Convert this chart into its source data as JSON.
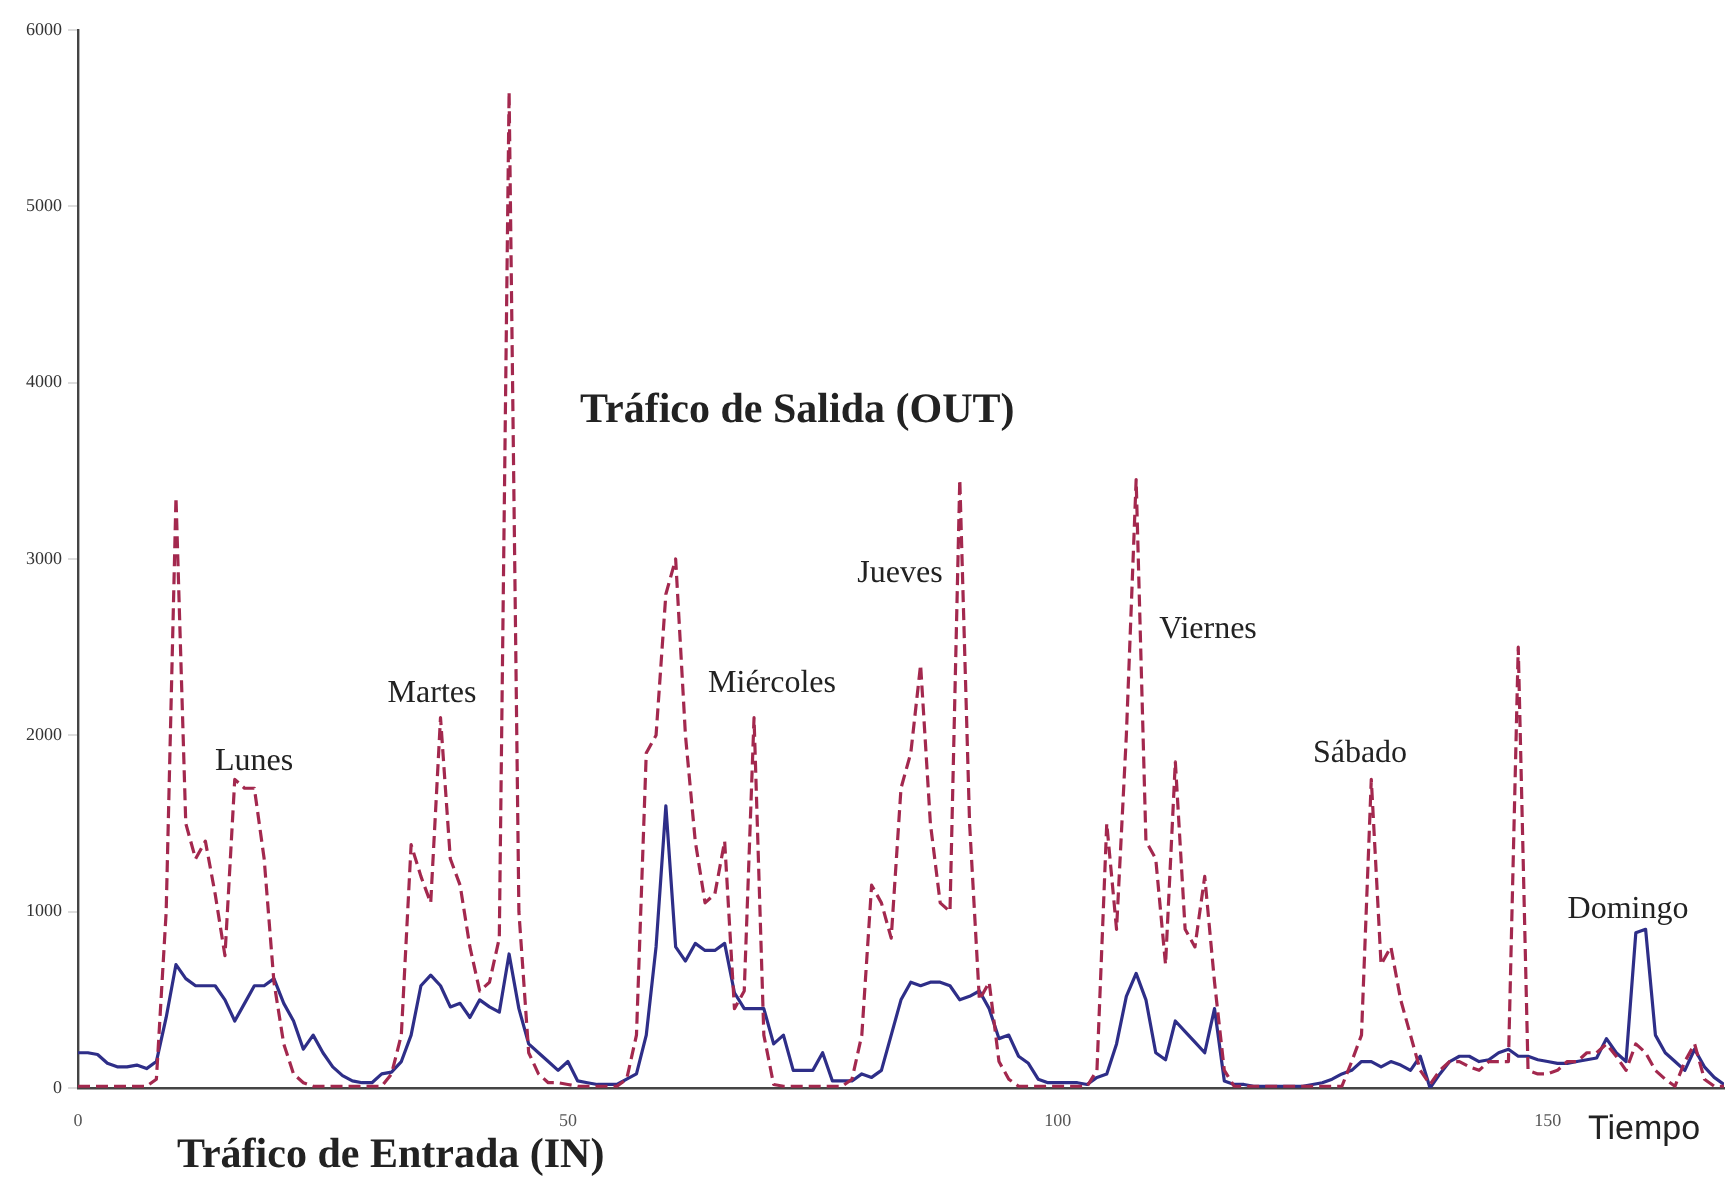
{
  "chart_data": {
    "type": "line",
    "xlabel": "Tiempo",
    "xlim": [
      0,
      168
    ],
    "xticks": [
      0,
      50,
      100,
      150
    ],
    "ylim": [
      0,
      6000
    ],
    "yticks": [
      0,
      1000,
      2000,
      3000,
      4000,
      5000,
      6000
    ],
    "grid": false,
    "legend": false,
    "marker": "none",
    "x": [
      0,
      1,
      2,
      3,
      4,
      5,
      6,
      7,
      8,
      9,
      10,
      11,
      12,
      13,
      14,
      15,
      16,
      17,
      18,
      19,
      20,
      21,
      22,
      23,
      24,
      25,
      26,
      27,
      28,
      29,
      30,
      31,
      32,
      33,
      34,
      35,
      36,
      37,
      38,
      39,
      40,
      41,
      42,
      43,
      44,
      45,
      46,
      47,
      48,
      49,
      50,
      51,
      52,
      53,
      54,
      55,
      56,
      57,
      58,
      59,
      60,
      61,
      62,
      63,
      64,
      65,
      66,
      67,
      68,
      69,
      70,
      71,
      72,
      73,
      74,
      75,
      76,
      77,
      78,
      79,
      80,
      81,
      82,
      83,
      84,
      85,
      86,
      87,
      88,
      89,
      90,
      91,
      92,
      93,
      94,
      95,
      96,
      97,
      98,
      99,
      100,
      101,
      102,
      103,
      104,
      105,
      106,
      107,
      108,
      109,
      110,
      111,
      112,
      113,
      114,
      115,
      116,
      117,
      118,
      119,
      120,
      121,
      122,
      123,
      124,
      125,
      126,
      127,
      128,
      129,
      130,
      131,
      132,
      133,
      134,
      135,
      136,
      137,
      138,
      139,
      140,
      141,
      142,
      143,
      144,
      145,
      146,
      147,
      148,
      149,
      150,
      151,
      152,
      153,
      154,
      155,
      156,
      157,
      158,
      159,
      160,
      161,
      162,
      163,
      164,
      165,
      166,
      167,
      168
    ],
    "series": [
      {
        "name": "Tráfico de Salida (OUT)",
        "color": "#a3284e",
        "line_style": "dashed",
        "values": [
          10,
          10,
          10,
          10,
          10,
          10,
          10,
          10,
          50,
          1000,
          3350,
          1500,
          1300,
          1400,
          1100,
          750,
          1750,
          1700,
          1700,
          1300,
          600,
          250,
          80,
          30,
          10,
          10,
          10,
          10,
          10,
          10,
          10,
          10,
          80,
          300,
          1380,
          1200,
          1050,
          2100,
          1300,
          1150,
          800,
          550,
          600,
          850,
          5650,
          1000,
          200,
          80,
          30,
          30,
          20,
          10,
          10,
          10,
          10,
          10,
          50,
          300,
          1900,
          2000,
          2800,
          3000,
          2000,
          1400,
          1050,
          1100,
          1400,
          450,
          550,
          2100,
          300,
          20,
          10,
          10,
          10,
          10,
          10,
          10,
          10,
          50,
          300,
          1150,
          1050,
          850,
          1700,
          1900,
          2400,
          1500,
          1050,
          1000,
          3450,
          1500,
          500,
          600,
          150,
          50,
          10,
          10,
          10,
          10,
          10,
          10,
          10,
          10,
          100,
          1500,
          900,
          2000,
          3450,
          1400,
          1300,
          700,
          1850,
          900,
          800,
          1200,
          600,
          100,
          10,
          10,
          10,
          10,
          10,
          10,
          10,
          10,
          10,
          10,
          10,
          10,
          150,
          300,
          1750,
          700,
          800,
          500,
          300,
          100,
          20,
          100,
          150,
          150,
          120,
          100,
          150,
          150,
          150,
          2500,
          100,
          80,
          80,
          100,
          150,
          150,
          200,
          200,
          250,
          180,
          100,
          250,
          200,
          100,
          50,
          10,
          150,
          250,
          50,
          10,
          10
        ]
      },
      {
        "name": "Tráfico de Entrada (IN)",
        "color": "#2e2e88",
        "line_style": "solid",
        "values": [
          200,
          200,
          190,
          140,
          120,
          120,
          130,
          110,
          150,
          400,
          700,
          620,
          580,
          580,
          580,
          500,
          380,
          480,
          580,
          580,
          620,
          480,
          380,
          220,
          300,
          200,
          120,
          70,
          40,
          30,
          30,
          80,
          90,
          150,
          300,
          580,
          640,
          580,
          460,
          480,
          400,
          500,
          460,
          430,
          760,
          450,
          250,
          200,
          150,
          100,
          150,
          40,
          30,
          20,
          20,
          20,
          50,
          80,
          300,
          800,
          1600,
          800,
          720,
          820,
          780,
          780,
          820,
          540,
          450,
          450,
          450,
          250,
          300,
          100,
          100,
          100,
          200,
          40,
          40,
          40,
          80,
          60,
          100,
          300,
          500,
          600,
          580,
          600,
          600,
          580,
          500,
          520,
          550,
          450,
          280,
          300,
          180,
          140,
          50,
          30,
          30,
          30,
          30,
          20,
          60,
          80,
          250,
          520,
          650,
          500,
          200,
          160,
          380,
          320,
          260,
          200,
          450,
          40,
          20,
          20,
          10,
          10,
          10,
          10,
          10,
          10,
          20,
          30,
          50,
          80,
          100,
          150,
          150,
          120,
          150,
          130,
          100,
          180,
          0,
          80,
          150,
          180,
          180,
          150,
          160,
          200,
          220,
          180,
          180,
          160,
          150,
          140,
          140,
          150,
          160,
          170,
          280,
          200,
          150,
          880,
          900,
          300,
          200,
          150,
          100,
          220,
          120,
          60,
          20
        ]
      }
    ],
    "annotations": [
      "Lunes",
      "Martes",
      "Miércoles",
      "Jueves",
      "Viernes",
      "Sábado",
      "Domingo"
    ]
  }
}
